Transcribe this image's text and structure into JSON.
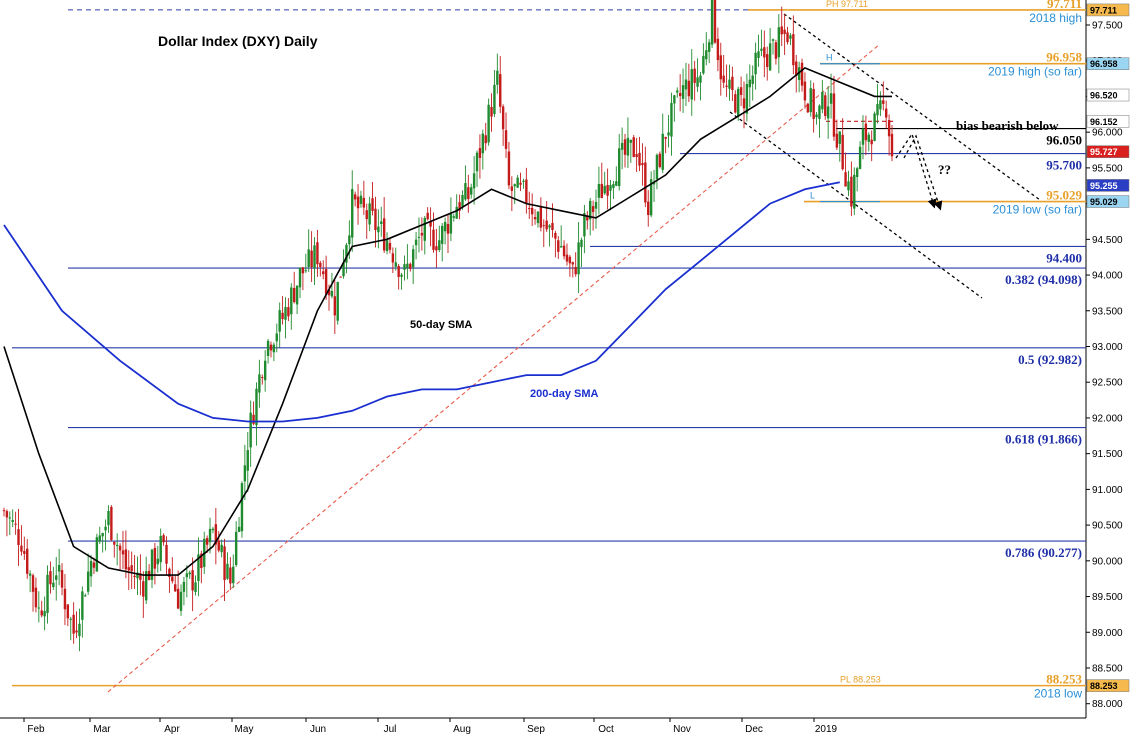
{
  "chart_data": {
    "type": "candlestick",
    "title": "Dollar Index (DXY) Daily",
    "x_ticks": [
      "Feb",
      "Mar",
      "Apr",
      "May",
      "Jun",
      "Jul",
      "Aug",
      "Sep",
      "Oct",
      "Nov",
      "Dec",
      "2019"
    ],
    "y_ticks": [
      "88.000",
      "88.500",
      "89.000",
      "89.500",
      "90.000",
      "90.500",
      "91.000",
      "91.500",
      "92.000",
      "92.500",
      "93.000",
      "93.500",
      "94.000",
      "94.500",
      "95.000",
      "95.500",
      "96.000",
      "96.500",
      "97.000",
      "97.500"
    ],
    "ylim": [
      87.8,
      97.85
    ],
    "sma_labels": {
      "sma50": "50-day SMA",
      "sma200": "200-day SMA"
    },
    "horizontal_levels": [
      {
        "value": 96.05,
        "label": "96.050",
        "style": "black"
      },
      {
        "value": 95.7,
        "label": "95.700",
        "style": "blue"
      },
      {
        "value": 94.4,
        "label": "94.400",
        "style": "blue"
      },
      {
        "value": 94.098,
        "label": "0.382 (94.098)",
        "style": "blue"
      },
      {
        "value": 92.982,
        "label": "0.5 (92.982)",
        "style": "blue"
      },
      {
        "value": 91.866,
        "label": "0.618 (91.866)",
        "style": "blue"
      },
      {
        "value": 90.277,
        "label": "0.786 (90.277)",
        "style": "blue"
      }
    ],
    "key_levels": [
      {
        "value": 97.711,
        "label": "97.711",
        "caption": "2018 high",
        "note": "PH 97.711"
      },
      {
        "value": 96.958,
        "label": "96.958",
        "caption": "2019 high (so far)",
        "note": "H"
      },
      {
        "value": 95.029,
        "label": "95.029",
        "caption": "2019 low (so far)",
        "note": "L"
      },
      {
        "value": 88.253,
        "label": "88.253",
        "caption": "2018 low",
        "note": "PL 88.253"
      }
    ],
    "annotation_bias": "bias bearish below",
    "annotation_question": "??",
    "price_tags": [
      {
        "value": 97.711,
        "label": "97.711",
        "color": "#f5b94d",
        "text_color": "#000000"
      },
      {
        "value": 96.958,
        "label": "96.958",
        "color": "#9ad5f2",
        "text_color": "#000000"
      },
      {
        "value": 96.52,
        "label": "96.520",
        "color": "#ffffff",
        "text_color": "#000000"
      },
      {
        "value": 96.152,
        "label": "96.152",
        "color": "#ffffff",
        "text_color": "#000000"
      },
      {
        "value": 95.727,
        "label": "95.727",
        "color": "#d9201f",
        "text_color": "#ffffff"
      },
      {
        "value": 95.255,
        "label": "95.255",
        "color": "#2b3fc4",
        "text_color": "#ffffff"
      },
      {
        "value": 95.029,
        "label": "95.029",
        "color": "#9ad5f2",
        "text_color": "#000000"
      },
      {
        "value": 88.253,
        "label": "88.253",
        "color": "#f5b94d",
        "text_color": "#000000"
      }
    ],
    "colors": {
      "up": "#1f8a2e",
      "down": "#c41a1a",
      "sma50": "#000000",
      "sma200": "#1a2fd0",
      "levels": "#2b3fa8",
      "key": "#e8a02a",
      "trend": "#e85a4a"
    },
    "price_path": [
      [
        0,
        90.7
      ],
      [
        6,
        90.3
      ],
      [
        12,
        89.3
      ],
      [
        18,
        89.9
      ],
      [
        24,
        89.0
      ],
      [
        30,
        90.0
      ],
      [
        36,
        90.6
      ],
      [
        42,
        89.9
      ],
      [
        48,
        89.7
      ],
      [
        54,
        90.2
      ],
      [
        60,
        89.5
      ],
      [
        66,
        89.8
      ],
      [
        72,
        90.4
      ],
      [
        78,
        89.7
      ],
      [
        84,
        91.7
      ],
      [
        90,
        93.0
      ],
      [
        96,
        93.4
      ],
      [
        102,
        94.0
      ],
      [
        108,
        94.3
      ],
      [
        114,
        93.6
      ],
      [
        120,
        95.0
      ],
      [
        126,
        94.8
      ],
      [
        132,
        94.5
      ],
      [
        138,
        94.0
      ],
      [
        144,
        94.6
      ],
      [
        150,
        94.5
      ],
      [
        156,
        95.0
      ],
      [
        160,
        95.1
      ],
      [
        165,
        95.9
      ],
      [
        170,
        96.7
      ],
      [
        174,
        95.2
      ],
      [
        180,
        95.1
      ],
      [
        186,
        94.7
      ],
      [
        192,
        94.4
      ],
      [
        196,
        94.0
      ],
      [
        200,
        94.7
      ],
      [
        206,
        95.2
      ],
      [
        212,
        95.6
      ],
      [
        218,
        95.8
      ],
      [
        222,
        95.0
      ],
      [
        228,
        96.0
      ],
      [
        234,
        96.6
      ],
      [
        240,
        96.8
      ],
      [
        244,
        97.7
      ],
      [
        248,
        96.6
      ],
      [
        254,
        96.4
      ],
      [
        260,
        97.0
      ],
      [
        266,
        97.2
      ],
      [
        270,
        97.4
      ],
      [
        276,
        96.6
      ],
      [
        280,
        96.2
      ],
      [
        284,
        96.5
      ],
      [
        288,
        95.8
      ],
      [
        292,
        95.1
      ],
      [
        296,
        95.9
      ],
      [
        300,
        96.1
      ],
      [
        304,
        96.4
      ],
      [
        306,
        95.7
      ]
    ],
    "sma50_path": [
      [
        0,
        93.0
      ],
      [
        12,
        91.5
      ],
      [
        24,
        90.2
      ],
      [
        36,
        89.9
      ],
      [
        48,
        89.8
      ],
      [
        60,
        89.8
      ],
      [
        72,
        90.2
      ],
      [
        84,
        91.0
      ],
      [
        96,
        92.2
      ],
      [
        108,
        93.5
      ],
      [
        120,
        94.4
      ],
      [
        132,
        94.5
      ],
      [
        144,
        94.7
      ],
      [
        156,
        94.9
      ],
      [
        168,
        95.2
      ],
      [
        180,
        95.0
      ],
      [
        192,
        94.9
      ],
      [
        204,
        94.8
      ],
      [
        216,
        95.1
      ],
      [
        228,
        95.4
      ],
      [
        240,
        95.9
      ],
      [
        252,
        96.2
      ],
      [
        264,
        96.5
      ],
      [
        276,
        96.9
      ],
      [
        288,
        96.7
      ],
      [
        300,
        96.5
      ],
      [
        306,
        96.5
      ]
    ],
    "sma200_path": [
      [
        0,
        94.7
      ],
      [
        20,
        93.5
      ],
      [
        40,
        92.8
      ],
      [
        60,
        92.2
      ],
      [
        72,
        92.0
      ],
      [
        84,
        91.95
      ],
      [
        96,
        91.95
      ],
      [
        108,
        92.0
      ],
      [
        120,
        92.1
      ],
      [
        132,
        92.3
      ],
      [
        144,
        92.4
      ],
      [
        156,
        92.4
      ],
      [
        168,
        92.5
      ],
      [
        180,
        92.6
      ],
      [
        192,
        92.6
      ],
      [
        204,
        92.8
      ],
      [
        216,
        93.3
      ],
      [
        228,
        93.8
      ],
      [
        240,
        94.2
      ],
      [
        252,
        94.6
      ],
      [
        264,
        95.0
      ],
      [
        276,
        95.2
      ],
      [
        288,
        95.3
      ]
    ]
  }
}
